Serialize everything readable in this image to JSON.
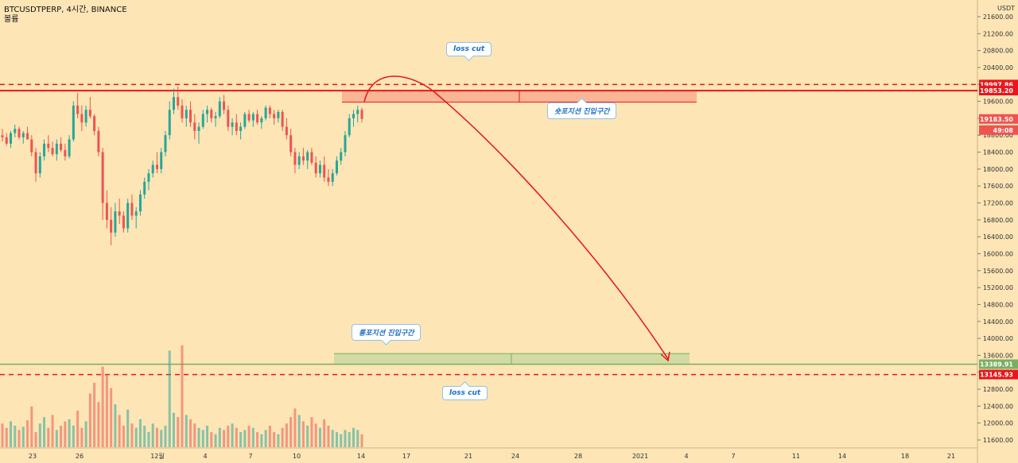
{
  "header": {
    "symbol_line": "BTCUSDTPERP, 4시간, BINANCE",
    "volume_label": "볼륨"
  },
  "axis": {
    "currency": "USDT",
    "y_ticks": [
      "21600.00",
      "21200.00",
      "20800.00",
      "20400.00",
      "20000.00",
      "19600.00",
      "19200.00",
      "18800.00",
      "18400.00",
      "18000.00",
      "17600.00",
      "17200.00",
      "16800.00",
      "16400.00",
      "16000.00",
      "15600.00",
      "15200.00",
      "14800.00",
      "14400.00",
      "14000.00",
      "13600.00",
      "13200.00",
      "12800.00",
      "12400.00",
      "12000.00",
      "11600.00"
    ],
    "x_ticks": [
      "23",
      "26",
      "12월",
      "4",
      "7",
      "10",
      "14",
      "17",
      "21",
      "24",
      "28",
      "2021",
      "4",
      "7",
      "11",
      "14",
      "18",
      "21"
    ]
  },
  "price_tags": [
    {
      "label": "19997.86",
      "value": 19997.86,
      "color": "#e8161b"
    },
    {
      "label": "19853.20",
      "value": 19853.2,
      "color": "#e8161b"
    },
    {
      "label": "19183.50",
      "value": 19183.5,
      "color": "#ef5350"
    },
    {
      "label": "49:08",
      "value": 19000,
      "color": "#ef5350"
    },
    {
      "label": "13389.91",
      "value": 13389.91,
      "color": "#7aae62"
    },
    {
      "label": "13145.93",
      "value": 13145.93,
      "color": "#e8161b"
    }
  ],
  "annotations": {
    "top_loss_cut": "loss cut",
    "short_zone": "숏포지션 진입구간",
    "long_zone": "롱포지션 진입구간",
    "bottom_loss_cut": "loss cut"
  },
  "colors": {
    "background": "#fde5b5",
    "up": "#26a69a",
    "down": "#ef5350",
    "line_red": "#e8161b",
    "short_zone": "#f7a48c",
    "long_zone": "#c9d9a0",
    "long_line": "#7aae62"
  },
  "chart_data": {
    "type": "candlestick",
    "instrument": "BTCUSDTPERP",
    "timeframe": "4시간",
    "exchange": "BINANCE",
    "ylim": [
      11400,
      21800
    ],
    "levels": {
      "top_loss_cut": 19997.86,
      "short_line": 19853.2,
      "current_price": 19183.5,
      "long_line": 13389.91,
      "bottom_loss_cut": 13145.93
    },
    "zones": [
      {
        "name": "숏포지션 진입구간",
        "low": 19580,
        "high": 19853.2
      },
      {
        "name": "롱포지션 진입구간",
        "low": 13389.91,
        "high": 13640
      }
    ],
    "candles": [
      [
        18800,
        18950,
        18650,
        18750
      ],
      [
        18750,
        18850,
        18550,
        18600
      ],
      [
        18600,
        18900,
        18500,
        18850
      ],
      [
        18850,
        19050,
        18750,
        18950
      ],
      [
        18950,
        19000,
        18700,
        18750
      ],
      [
        18750,
        18900,
        18600,
        18850
      ],
      [
        18850,
        19000,
        18700,
        18700
      ],
      [
        18700,
        18800,
        18300,
        18400
      ],
      [
        18400,
        18500,
        17700,
        17900
      ],
      [
        17900,
        18400,
        17800,
        18300
      ],
      [
        18300,
        18700,
        18200,
        18600
      ],
      [
        18600,
        18800,
        18400,
        18500
      ],
      [
        18500,
        18650,
        18300,
        18350
      ],
      [
        18350,
        18700,
        18200,
        18600
      ],
      [
        18600,
        18750,
        18400,
        18450
      ],
      [
        18450,
        18600,
        18200,
        18300
      ],
      [
        18300,
        18800,
        18250,
        18700
      ],
      [
        18700,
        19600,
        18650,
        19500
      ],
      [
        19500,
        19800,
        19200,
        19300
      ],
      [
        19300,
        19500,
        18900,
        19100
      ],
      [
        19100,
        19500,
        19000,
        19400
      ],
      [
        19400,
        19700,
        19200,
        19250
      ],
      [
        19250,
        19300,
        18800,
        18900
      ],
      [
        18900,
        19000,
        18300,
        18400
      ],
      [
        18400,
        18500,
        16800,
        17200
      ],
      [
        17200,
        17500,
        16600,
        16800
      ],
      [
        16800,
        17100,
        16200,
        16500
      ],
      [
        16500,
        17200,
        16400,
        17000
      ],
      [
        17000,
        17300,
        16700,
        16900
      ],
      [
        16900,
        17000,
        16500,
        16600
      ],
      [
        16600,
        17300,
        16500,
        17200
      ],
      [
        17200,
        17400,
        16800,
        16900
      ],
      [
        16900,
        17100,
        16600,
        17000
      ],
      [
        17000,
        17500,
        16900,
        17400
      ],
      [
        17400,
        17800,
        17300,
        17700
      ],
      [
        17700,
        18000,
        17500,
        17900
      ],
      [
        17900,
        18200,
        17800,
        18100
      ],
      [
        18100,
        18400,
        17900,
        18000
      ],
      [
        18000,
        18500,
        17900,
        18400
      ],
      [
        18400,
        18900,
        18300,
        18800
      ],
      [
        18800,
        19600,
        18700,
        19400
      ],
      [
        19400,
        19900,
        19300,
        19700
      ],
      [
        19700,
        19950,
        19400,
        19500
      ],
      [
        19500,
        19650,
        19100,
        19200
      ],
      [
        19200,
        19500,
        19000,
        19400
      ],
      [
        19400,
        19600,
        19000,
        19100
      ],
      [
        19100,
        19300,
        18700,
        18900
      ],
      [
        18900,
        19100,
        18600,
        19000
      ],
      [
        19000,
        19400,
        18950,
        19300
      ],
      [
        19300,
        19500,
        19100,
        19400
      ],
      [
        19400,
        19450,
        19100,
        19200
      ],
      [
        19200,
        19350,
        19000,
        19250
      ],
      [
        19250,
        19700,
        19200,
        19600
      ],
      [
        19600,
        19750,
        19300,
        19400
      ],
      [
        19400,
        19500,
        18900,
        19000
      ],
      [
        19000,
        19200,
        18800,
        19100
      ],
      [
        19100,
        19300,
        18800,
        18900
      ],
      [
        18900,
        19100,
        18700,
        19000
      ],
      [
        19000,
        19350,
        18950,
        19300
      ],
      [
        19300,
        19400,
        19100,
        19150
      ],
      [
        19150,
        19350,
        19000,
        19300
      ],
      [
        19300,
        19400,
        19050,
        19100
      ],
      [
        19100,
        19250,
        18950,
        19200
      ],
      [
        19200,
        19500,
        19150,
        19450
      ],
      [
        19450,
        19500,
        19200,
        19300
      ],
      [
        19300,
        19400,
        19050,
        19200
      ],
      [
        19200,
        19400,
        19100,
        19350
      ],
      [
        19350,
        19400,
        18900,
        19000
      ],
      [
        19000,
        19200,
        18700,
        18800
      ],
      [
        18800,
        18950,
        18300,
        18400
      ],
      [
        18400,
        18500,
        17900,
        18100
      ],
      [
        18100,
        18400,
        18000,
        18300
      ],
      [
        18300,
        18500,
        18100,
        18200
      ],
      [
        18200,
        18450,
        18000,
        18400
      ],
      [
        18400,
        18500,
        18100,
        18150
      ],
      [
        18150,
        18300,
        17800,
        17900
      ],
      [
        17900,
        18200,
        17800,
        18100
      ],
      [
        18100,
        18300,
        17700,
        17800
      ],
      [
        17800,
        18000,
        17600,
        17700
      ],
      [
        17700,
        18000,
        17600,
        17900
      ],
      [
        17900,
        18300,
        17850,
        18200
      ],
      [
        18200,
        18500,
        18100,
        18400
      ],
      [
        18400,
        18900,
        18300,
        18800
      ],
      [
        18800,
        19300,
        18750,
        19200
      ],
      [
        19200,
        19400,
        19000,
        19300
      ],
      [
        19300,
        19500,
        19100,
        19400
      ],
      [
        19400,
        19450,
        19100,
        19183.5
      ]
    ],
    "volumes": [
      0.22,
      0.18,
      0.24,
      0.2,
      0.16,
      0.19,
      0.25,
      0.38,
      0.14,
      0.22,
      0.28,
      0.18,
      0.3,
      0.16,
      0.2,
      0.24,
      0.26,
      0.2,
      0.34,
      0.18,
      0.24,
      0.5,
      0.6,
      0.42,
      0.75,
      0.68,
      0.55,
      0.4,
      0.3,
      0.2,
      0.35,
      0.22,
      0.18,
      0.26,
      0.2,
      0.14,
      0.22,
      0.18,
      0.16,
      0.2,
      0.9,
      0.32,
      0.28,
      0.95,
      0.3,
      0.26,
      0.22,
      0.18,
      0.16,
      0.2,
      0.14,
      0.12,
      0.18,
      0.16,
      0.2,
      0.22,
      0.18,
      0.14,
      0.16,
      0.2,
      0.18,
      0.14,
      0.12,
      0.16,
      0.2,
      0.14,
      0.12,
      0.18,
      0.22,
      0.28,
      0.36,
      0.3,
      0.24,
      0.2,
      0.28,
      0.22,
      0.18,
      0.26,
      0.2,
      0.16,
      0.14,
      0.12,
      0.16,
      0.14,
      0.18,
      0.16,
      0.12
    ],
    "projection": {
      "from_x": "14",
      "to_x": "4",
      "from_price": 19183.5,
      "to_price": 13389.91
    }
  }
}
